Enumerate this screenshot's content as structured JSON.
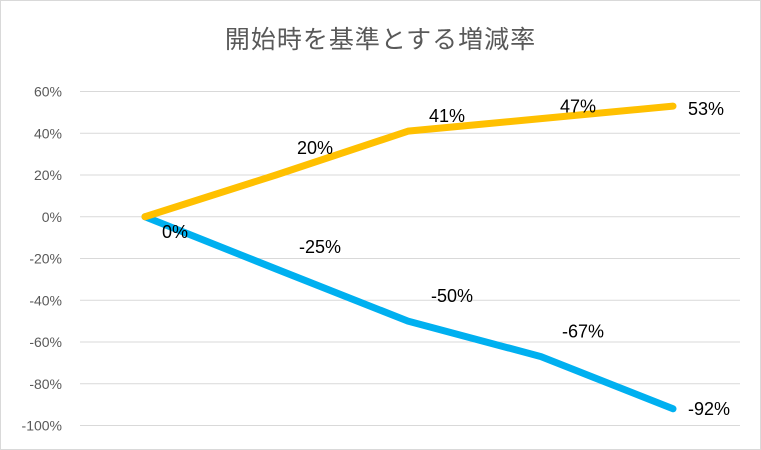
{
  "chart_data": {
    "type": "line",
    "title": "開始時を基準とする増減率",
    "x": [
      0,
      1,
      2,
      3,
      4
    ],
    "series": [
      {
        "values": [
          0,
          20,
          41,
          47,
          53
        ],
        "labels": [
          "0%",
          "20%",
          "41%",
          "47%",
          "53%"
        ],
        "color": "#ffc000"
      },
      {
        "values": [
          0,
          -25,
          -50,
          -67,
          -92
        ],
        "labels": [
          "0%",
          "-25%",
          "-50%",
          "-67%",
          "-92%"
        ],
        "color": "#00b0f0"
      }
    ],
    "ylim": [
      -100,
      60
    ],
    "yticks": [
      60,
      40,
      20,
      0,
      -20,
      -40,
      -60,
      -80,
      -100
    ],
    "ytick_labels": [
      "60%",
      "40%",
      "20%",
      "0%",
      "-20%",
      "-40%",
      "-60%",
      "-80%",
      "-100%"
    ],
    "grid": true,
    "gridline_color": "#d9d9d9"
  }
}
